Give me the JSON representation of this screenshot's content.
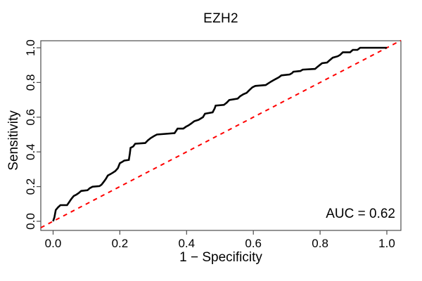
{
  "figure": {
    "title": "EZH2",
    "xlabel": "1 − Specificity",
    "ylabel": "Sensitivity",
    "auc_label": "AUC = 0.62"
  },
  "colors": {
    "curve": "#000000",
    "diagonal": "#ff0000",
    "box": "#4d4d4d",
    "tick": "#4d4d4d",
    "text": "#000000",
    "background": "#ffffff"
  },
  "chart_data": {
    "type": "line",
    "title": "EZH2",
    "xlabel": "1 − Specificity",
    "ylabel": "Sensitivity",
    "xlim": [
      0,
      1
    ],
    "ylim": [
      0,
      1
    ],
    "grid": false,
    "legend": false,
    "annotation": "AUC = 0.62",
    "auc": 0.62,
    "x_ticks": [
      0.0,
      0.2,
      0.4,
      0.6,
      0.8,
      1.0
    ],
    "x_tick_labels": [
      "0.0",
      "0.2",
      "0.4",
      "0.6",
      "0.8",
      "1.0"
    ],
    "y_ticks": [
      0.0,
      0.2,
      0.4,
      0.6,
      0.8,
      1.0
    ],
    "y_tick_labels": [
      "0.0",
      "0.2",
      "0.4",
      "0.6",
      "0.8",
      "1.0"
    ],
    "series": [
      {
        "name": "ROC curve",
        "color": "#000000",
        "style": "solid",
        "points": [
          [
            0.0,
            0.0
          ],
          [
            0.004,
            0.024
          ],
          [
            0.008,
            0.065
          ],
          [
            0.015,
            0.081
          ],
          [
            0.022,
            0.093
          ],
          [
            0.042,
            0.093
          ],
          [
            0.048,
            0.11
          ],
          [
            0.055,
            0.13
          ],
          [
            0.062,
            0.146
          ],
          [
            0.07,
            0.154
          ],
          [
            0.077,
            0.163
          ],
          [
            0.084,
            0.175
          ],
          [
            0.103,
            0.179
          ],
          [
            0.11,
            0.191
          ],
          [
            0.118,
            0.199
          ],
          [
            0.139,
            0.203
          ],
          [
            0.145,
            0.211
          ],
          [
            0.152,
            0.228
          ],
          [
            0.158,
            0.244
          ],
          [
            0.164,
            0.264
          ],
          [
            0.172,
            0.272
          ],
          [
            0.179,
            0.28
          ],
          [
            0.186,
            0.289
          ],
          [
            0.194,
            0.306
          ],
          [
            0.2,
            0.335
          ],
          [
            0.206,
            0.341
          ],
          [
            0.213,
            0.35
          ],
          [
            0.227,
            0.354
          ],
          [
            0.23,
            0.39
          ],
          [
            0.232,
            0.423
          ],
          [
            0.24,
            0.431
          ],
          [
            0.246,
            0.447
          ],
          [
            0.276,
            0.451
          ],
          [
            0.284,
            0.467
          ],
          [
            0.293,
            0.48
          ],
          [
            0.303,
            0.492
          ],
          [
            0.311,
            0.5
          ],
          [
            0.364,
            0.508
          ],
          [
            0.37,
            0.526
          ],
          [
            0.373,
            0.534
          ],
          [
            0.39,
            0.534
          ],
          [
            0.398,
            0.545
          ],
          [
            0.406,
            0.553
          ],
          [
            0.415,
            0.565
          ],
          [
            0.423,
            0.577
          ],
          [
            0.436,
            0.585
          ],
          [
            0.449,
            0.6
          ],
          [
            0.455,
            0.62
          ],
          [
            0.478,
            0.628
          ],
          [
            0.484,
            0.65
          ],
          [
            0.487,
            0.667
          ],
          [
            0.512,
            0.671
          ],
          [
            0.52,
            0.683
          ],
          [
            0.528,
            0.699
          ],
          [
            0.553,
            0.707
          ],
          [
            0.56,
            0.72
          ],
          [
            0.57,
            0.732
          ],
          [
            0.58,
            0.74
          ],
          [
            0.588,
            0.756
          ],
          [
            0.597,
            0.772
          ],
          [
            0.606,
            0.78
          ],
          [
            0.637,
            0.785
          ],
          [
            0.645,
            0.795
          ],
          [
            0.653,
            0.805
          ],
          [
            0.66,
            0.813
          ],
          [
            0.668,
            0.821
          ],
          [
            0.676,
            0.829
          ],
          [
            0.684,
            0.841
          ],
          [
            0.709,
            0.846
          ],
          [
            0.716,
            0.854
          ],
          [
            0.72,
            0.862
          ],
          [
            0.741,
            0.866
          ],
          [
            0.748,
            0.874
          ],
          [
            0.785,
            0.878
          ],
          [
            0.792,
            0.89
          ],
          [
            0.8,
            0.902
          ],
          [
            0.806,
            0.911
          ],
          [
            0.821,
            0.915
          ],
          [
            0.828,
            0.927
          ],
          [
            0.838,
            0.943
          ],
          [
            0.853,
            0.951
          ],
          [
            0.86,
            0.959
          ],
          [
            0.868,
            0.974
          ],
          [
            0.89,
            0.974
          ],
          [
            0.898,
            0.988
          ],
          [
            0.912,
            0.988
          ],
          [
            0.92,
            1.0
          ],
          [
            1.0,
            1.0
          ]
        ]
      },
      {
        "name": "chance diagonal",
        "color": "#ff0000",
        "style": "dashed",
        "points": [
          [
            0,
            0
          ],
          [
            1,
            1
          ]
        ]
      }
    ]
  }
}
